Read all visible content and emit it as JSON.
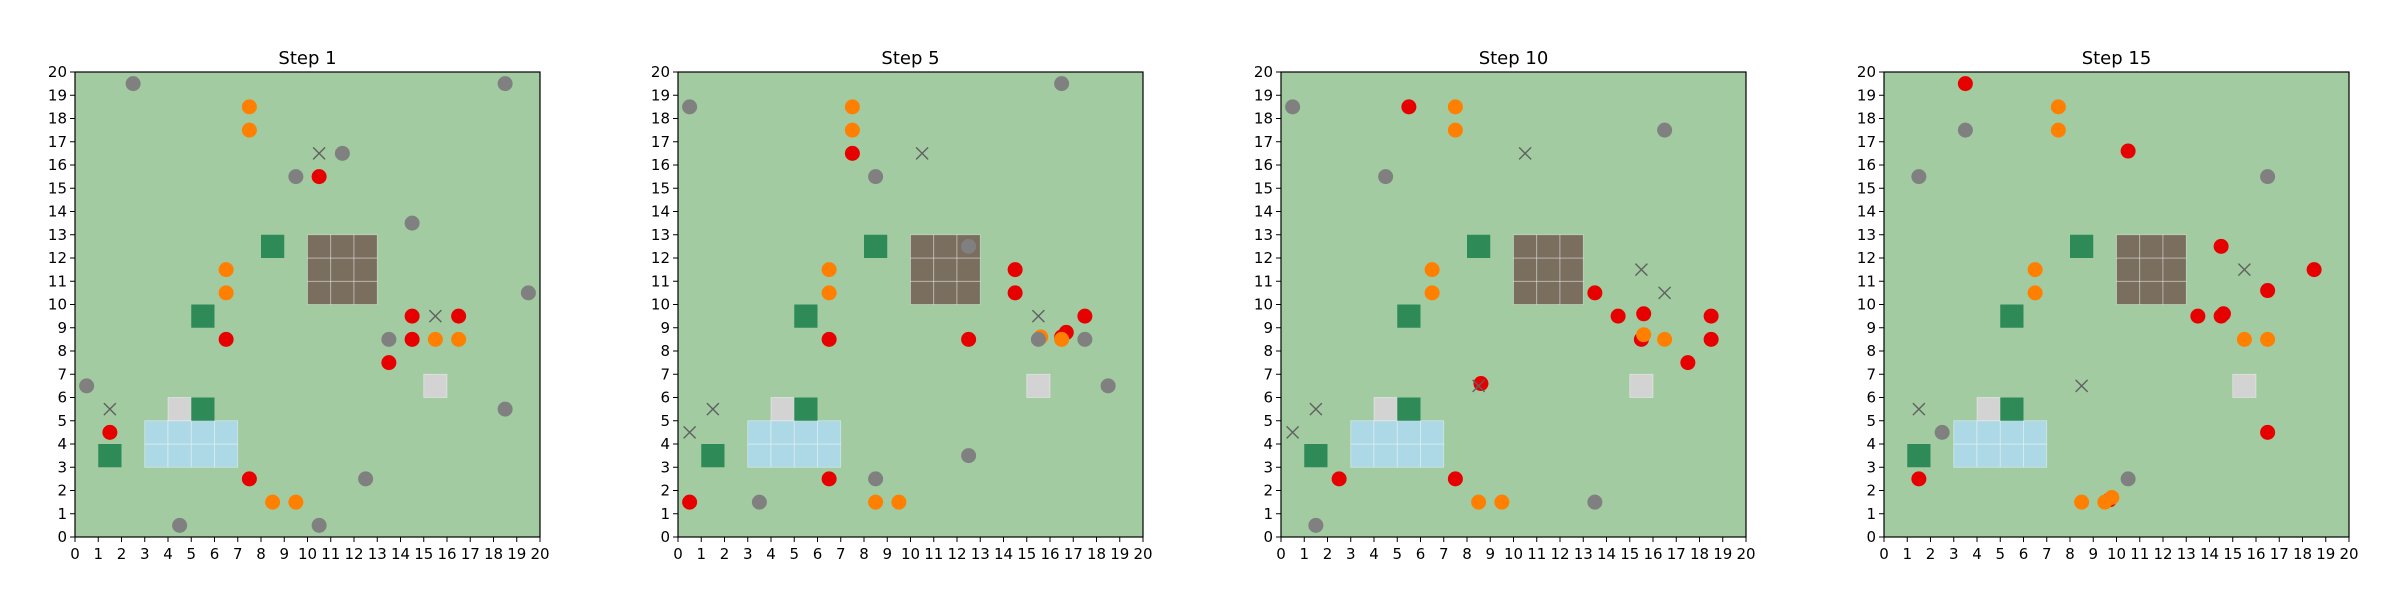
{
  "colors": {
    "background": "#a2cba2",
    "obstacle": "#7a6e5f",
    "water": "#add8e6",
    "light_tile": "#d3d3d3",
    "green_tile": "#2e8b57",
    "red": "#e60000",
    "orange": "#ff8000",
    "gray": "#808080",
    "x_marker": "#606060"
  },
  "chart_data": [
    {
      "type": "scatter",
      "title": "Step 1",
      "xlim": [
        0,
        20
      ],
      "ylim": [
        0,
        20
      ],
      "xticks": [
        0,
        1,
        2,
        3,
        4,
        5,
        6,
        7,
        8,
        9,
        10,
        11,
        12,
        13,
        14,
        15,
        16,
        17,
        18,
        19,
        20
      ],
      "yticks": [
        0,
        1,
        2,
        3,
        4,
        5,
        6,
        7,
        8,
        9,
        10,
        11,
        12,
        13,
        14,
        15,
        16,
        17,
        18,
        19,
        20
      ],
      "grid": false,
      "tiles": {
        "obstacle": [
          [
            10,
            10
          ],
          [
            11,
            10
          ],
          [
            12,
            10
          ],
          [
            10,
            11
          ],
          [
            11,
            11
          ],
          [
            12,
            11
          ],
          [
            10,
            12
          ],
          [
            11,
            12
          ],
          [
            12,
            12
          ]
        ],
        "water": [
          [
            3,
            3
          ],
          [
            4,
            3
          ],
          [
            5,
            3
          ],
          [
            6,
            3
          ],
          [
            3,
            4
          ],
          [
            4,
            4
          ],
          [
            5,
            4
          ],
          [
            6,
            4
          ]
        ],
        "light": [
          [
            4,
            5
          ],
          [
            15,
            6
          ]
        ],
        "green": [
          [
            1,
            3
          ],
          [
            5,
            5
          ],
          [
            5,
            9
          ],
          [
            8,
            12
          ]
        ]
      },
      "series": [
        {
          "marker": "red",
          "points": [
            [
              1.5,
              4.5
            ],
            [
              6.5,
              8.5
            ],
            [
              7.5,
              2.5
            ],
            [
              10.5,
              15.5
            ],
            [
              13.5,
              7.5
            ],
            [
              14.5,
              8.5
            ],
            [
              14.5,
              9.5
            ],
            [
              16.5,
              9.5
            ]
          ]
        },
        {
          "marker": "orange",
          "points": [
            [
              6.5,
              10.5
            ],
            [
              6.5,
              11.5
            ],
            [
              7.5,
              17.5
            ],
            [
              7.5,
              18.5
            ],
            [
              8.5,
              1.5
            ],
            [
              9.5,
              1.5
            ],
            [
              15.5,
              8.5
            ],
            [
              16.5,
              8.5
            ]
          ]
        },
        {
          "marker": "gray",
          "points": [
            [
              0.5,
              6.5
            ],
            [
              2.5,
              19.5
            ],
            [
              4.5,
              0.5
            ],
            [
              9.5,
              15.5
            ],
            [
              10.5,
              0.5
            ],
            [
              11.5,
              16.5
            ],
            [
              12.5,
              2.5
            ],
            [
              13.5,
              8.5
            ],
            [
              14.5,
              13.5
            ],
            [
              18.5,
              5.5
            ],
            [
              18.5,
              19.5
            ],
            [
              19.5,
              10.5
            ]
          ]
        },
        {
          "marker": "x",
          "points": [
            [
              1.5,
              5.5
            ],
            [
              10.5,
              16.5
            ],
            [
              15.5,
              9.5
            ]
          ]
        }
      ]
    },
    {
      "type": "scatter",
      "title": "Step 5",
      "xlim": [
        0,
        20
      ],
      "ylim": [
        0,
        20
      ],
      "xticks": [
        0,
        1,
        2,
        3,
        4,
        5,
        6,
        7,
        8,
        9,
        10,
        11,
        12,
        13,
        14,
        15,
        16,
        17,
        18,
        19,
        20
      ],
      "yticks": [
        0,
        1,
        2,
        3,
        4,
        5,
        6,
        7,
        8,
        9,
        10,
        11,
        12,
        13,
        14,
        15,
        16,
        17,
        18,
        19,
        20
      ],
      "grid": false,
      "tiles": {
        "obstacle": [
          [
            10,
            10
          ],
          [
            11,
            10
          ],
          [
            12,
            10
          ],
          [
            10,
            11
          ],
          [
            11,
            11
          ],
          [
            12,
            11
          ],
          [
            10,
            12
          ],
          [
            11,
            12
          ],
          [
            12,
            12
          ]
        ],
        "water": [
          [
            3,
            3
          ],
          [
            4,
            3
          ],
          [
            5,
            3
          ],
          [
            6,
            3
          ],
          [
            3,
            4
          ],
          [
            4,
            4
          ],
          [
            5,
            4
          ],
          [
            6,
            4
          ]
        ],
        "light": [
          [
            4,
            5
          ],
          [
            15,
            6
          ]
        ],
        "green": [
          [
            1,
            3
          ],
          [
            5,
            5
          ],
          [
            5,
            9
          ],
          [
            8,
            12
          ]
        ]
      },
      "series": [
        {
          "marker": "red",
          "points": [
            [
              0.5,
              1.5
            ],
            [
              6.5,
              2.5
            ],
            [
              6.5,
              8.5
            ],
            [
              7.5,
              16.5
            ],
            [
              12.5,
              8.5
            ],
            [
              14.5,
              10.5
            ],
            [
              14.5,
              11.5
            ],
            [
              16.5,
              8.6
            ],
            [
              16.7,
              8.8
            ],
            [
              17.5,
              9.5
            ]
          ]
        },
        {
          "marker": "orange",
          "points": [
            [
              6.5,
              10.5
            ],
            [
              6.5,
              11.5
            ],
            [
              7.5,
              17.5
            ],
            [
              7.5,
              18.5
            ],
            [
              8.5,
              1.5
            ],
            [
              9.5,
              1.5
            ],
            [
              15.6,
              8.6
            ],
            [
              16.5,
              8.5
            ]
          ]
        },
        {
          "marker": "gray",
          "points": [
            [
              0.5,
              18.5
            ],
            [
              3.5,
              1.5
            ],
            [
              8.5,
              2.5
            ],
            [
              8.5,
              15.5
            ],
            [
              12.5,
              3.5
            ],
            [
              12.5,
              12.5
            ],
            [
              15.5,
              8.5
            ],
            [
              16.5,
              19.5
            ],
            [
              17.5,
              8.5
            ],
            [
              18.5,
              6.5
            ]
          ]
        },
        {
          "marker": "x",
          "points": [
            [
              0.5,
              4.5
            ],
            [
              1.5,
              5.5
            ],
            [
              10.5,
              16.5
            ],
            [
              15.5,
              9.5
            ]
          ]
        }
      ]
    },
    {
      "type": "scatter",
      "title": "Step 10",
      "xlim": [
        0,
        20
      ],
      "ylim": [
        0,
        20
      ],
      "xticks": [
        0,
        1,
        2,
        3,
        4,
        5,
        6,
        7,
        8,
        9,
        10,
        11,
        12,
        13,
        14,
        15,
        16,
        17,
        18,
        19,
        20
      ],
      "yticks": [
        0,
        1,
        2,
        3,
        4,
        5,
        6,
        7,
        8,
        9,
        10,
        11,
        12,
        13,
        14,
        15,
        16,
        17,
        18,
        19,
        20
      ],
      "grid": false,
      "tiles": {
        "obstacle": [
          [
            10,
            10
          ],
          [
            11,
            10
          ],
          [
            12,
            10
          ],
          [
            10,
            11
          ],
          [
            11,
            11
          ],
          [
            12,
            11
          ],
          [
            10,
            12
          ],
          [
            11,
            12
          ],
          [
            12,
            12
          ]
        ],
        "water": [
          [
            3,
            3
          ],
          [
            4,
            3
          ],
          [
            5,
            3
          ],
          [
            6,
            3
          ],
          [
            3,
            4
          ],
          [
            4,
            4
          ],
          [
            5,
            4
          ],
          [
            6,
            4
          ]
        ],
        "light": [
          [
            4,
            5
          ],
          [
            15,
            6
          ]
        ],
        "green": [
          [
            1,
            3
          ],
          [
            5,
            5
          ],
          [
            5,
            9
          ],
          [
            8,
            12
          ]
        ]
      },
      "series": [
        {
          "marker": "red",
          "points": [
            [
              2.5,
              2.5
            ],
            [
              5.5,
              18.5
            ],
            [
              7.5,
              2.5
            ],
            [
              8.6,
              6.6
            ],
            [
              13.5,
              10.5
            ],
            [
              14.5,
              9.5
            ],
            [
              15.5,
              8.5
            ],
            [
              15.6,
              9.6
            ],
            [
              17.5,
              7.5
            ],
            [
              18.5,
              8.5
            ],
            [
              18.5,
              9.5
            ]
          ]
        },
        {
          "marker": "orange",
          "points": [
            [
              6.5,
              10.5
            ],
            [
              6.5,
              11.5
            ],
            [
              7.5,
              17.5
            ],
            [
              7.5,
              18.5
            ],
            [
              8.5,
              1.5
            ],
            [
              9.5,
              1.5
            ],
            [
              15.6,
              8.7
            ],
            [
              16.5,
              8.5
            ]
          ]
        },
        {
          "marker": "gray",
          "points": [
            [
              0.5,
              18.5
            ],
            [
              1.5,
              0.5
            ],
            [
              4.5,
              15.5
            ],
            [
              13.5,
              1.5
            ],
            [
              16.5,
              17.5
            ]
          ]
        },
        {
          "marker": "x",
          "points": [
            [
              0.5,
              4.5
            ],
            [
              1.5,
              5.5
            ],
            [
              8.5,
              6.5
            ],
            [
              10.5,
              16.5
            ],
            [
              15.5,
              11.5
            ],
            [
              16.5,
              10.5
            ]
          ]
        }
      ]
    },
    {
      "type": "scatter",
      "title": "Step 15",
      "xlim": [
        0,
        20
      ],
      "ylim": [
        0,
        20
      ],
      "xticks": [
        0,
        1,
        2,
        3,
        4,
        5,
        6,
        7,
        8,
        9,
        10,
        11,
        12,
        13,
        14,
        15,
        16,
        17,
        18,
        19,
        20
      ],
      "yticks": [
        0,
        1,
        2,
        3,
        4,
        5,
        6,
        7,
        8,
        9,
        10,
        11,
        12,
        13,
        14,
        15,
        16,
        17,
        18,
        19,
        20
      ],
      "grid": false,
      "tiles": {
        "obstacle": [
          [
            10,
            10
          ],
          [
            11,
            10
          ],
          [
            12,
            10
          ],
          [
            10,
            11
          ],
          [
            11,
            11
          ],
          [
            12,
            11
          ],
          [
            10,
            12
          ],
          [
            11,
            12
          ],
          [
            12,
            12
          ]
        ],
        "water": [
          [
            3,
            3
          ],
          [
            4,
            3
          ],
          [
            5,
            3
          ],
          [
            6,
            3
          ],
          [
            3,
            4
          ],
          [
            4,
            4
          ],
          [
            5,
            4
          ],
          [
            6,
            4
          ]
        ],
        "light": [
          [
            4,
            5
          ],
          [
            15,
            6
          ]
        ],
        "green": [
          [
            1,
            3
          ],
          [
            5,
            5
          ],
          [
            5,
            9
          ],
          [
            8,
            12
          ]
        ]
      },
      "series": [
        {
          "marker": "red",
          "points": [
            [
              1.5,
              2.5
            ],
            [
              3.5,
              19.5
            ],
            [
              9.7,
              1.6
            ],
            [
              10.5,
              16.6
            ],
            [
              13.5,
              9.5
            ],
            [
              14.5,
              9.5
            ],
            [
              14.6,
              9.6
            ],
            [
              14.5,
              12.5
            ],
            [
              16.5,
              4.5
            ],
            [
              16.5,
              10.6
            ],
            [
              18.5,
              11.5
            ]
          ]
        },
        {
          "marker": "orange",
          "points": [
            [
              6.5,
              10.5
            ],
            [
              6.5,
              11.5
            ],
            [
              7.5,
              17.5
            ],
            [
              7.5,
              18.5
            ],
            [
              8.5,
              1.5
            ],
            [
              9.5,
              1.5
            ],
            [
              9.8,
              1.7
            ],
            [
              15.5,
              8.5
            ],
            [
              16.5,
              8.5
            ]
          ]
        },
        {
          "marker": "gray",
          "points": [
            [
              1.5,
              15.5
            ],
            [
              2.5,
              4.5
            ],
            [
              3.5,
              17.5
            ],
            [
              10.5,
              2.5
            ],
            [
              16.5,
              15.5
            ]
          ]
        },
        {
          "marker": "x",
          "points": [
            [
              1.5,
              5.5
            ],
            [
              8.5,
              6.5
            ],
            [
              15.5,
              11.5
            ]
          ]
        }
      ]
    }
  ]
}
